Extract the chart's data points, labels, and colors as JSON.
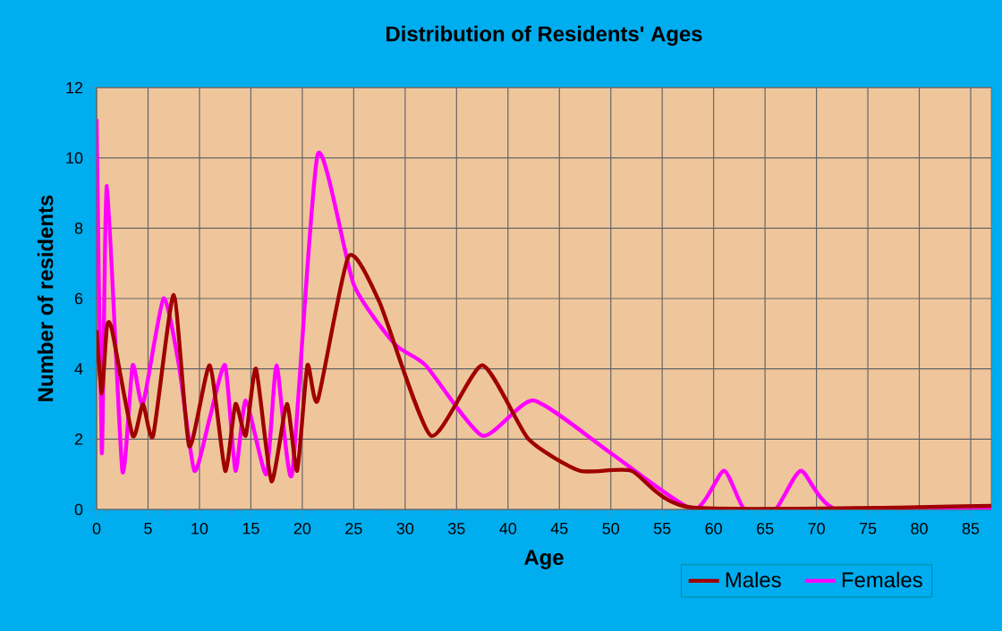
{
  "chart_data": {
    "type": "line",
    "title": "Distribution of Residents' Ages",
    "xlabel": "Age",
    "ylabel": "Number of residents",
    "xlim": [
      0,
      87
    ],
    "ylim": [
      0,
      12
    ],
    "xticks": [
      0,
      5,
      10,
      15,
      20,
      25,
      30,
      35,
      40,
      45,
      50,
      55,
      60,
      65,
      70,
      75,
      80,
      85
    ],
    "yticks": [
      0,
      2,
      4,
      6,
      8,
      10,
      12
    ],
    "grid": true,
    "legend": "bottom right",
    "series": [
      {
        "name": "Males",
        "color": "#a00000",
        "x": [
          0,
          0.5,
          1,
          1.5,
          3.5,
          4.5,
          5.5,
          7.5,
          9,
          11,
          12.5,
          13.5,
          14.5,
          15.5,
          17,
          18.5,
          19.5,
          20.5,
          21.5,
          24.5,
          27.5,
          32.5,
          37.5,
          42,
          47,
          52,
          58,
          87
        ],
        "values": [
          5.1,
          3.3,
          5.2,
          5.1,
          2.1,
          3.0,
          2.1,
          6.1,
          1.8,
          4.1,
          1.1,
          3.0,
          2.1,
          4.0,
          0.8,
          3.0,
          1.1,
          4.1,
          3.1,
          7.2,
          5.9,
          2.1,
          4.1,
          2.0,
          1.1,
          1.1,
          0.05,
          0.1
        ]
      },
      {
        "name": "Females",
        "color": "#ff00ff",
        "x": [
          0,
          0.5,
          1,
          2.5,
          3.5,
          4.5,
          6.5,
          8,
          9.5,
          11,
          12.5,
          13.5,
          14.5,
          16.5,
          17.5,
          19,
          21.5,
          25,
          29,
          32,
          37.5,
          42.5,
          50,
          58,
          61,
          63,
          66,
          68.5,
          72,
          87
        ],
        "values": [
          11.1,
          1.6,
          9.2,
          1.1,
          4.1,
          3.0,
          6.0,
          4.1,
          1.1,
          2.6,
          4.1,
          1.1,
          3.1,
          1.0,
          4.1,
          1.0,
          10.1,
          6.4,
          4.7,
          4.1,
          2.1,
          3.1,
          1.6,
          0,
          1.1,
          0,
          0,
          1.1,
          0,
          0
        ]
      }
    ]
  }
}
